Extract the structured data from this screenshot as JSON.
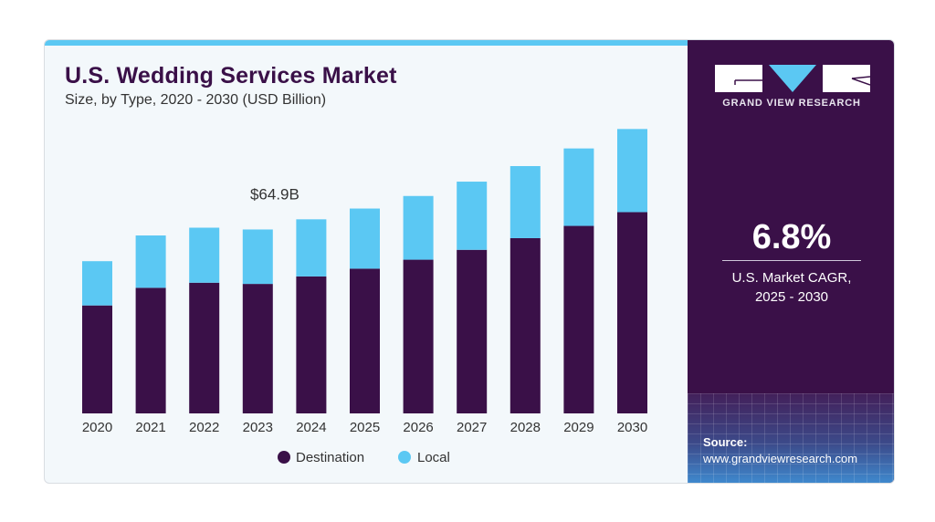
{
  "header": {
    "title": "U.S. Wedding Services Market",
    "subtitle": "Size, by Type, 2020 - 2030 (USD Billion)"
  },
  "brand": {
    "name": "GRAND VIEW RESEARCH",
    "logo_letters": "GVR"
  },
  "stat": {
    "value": "6.8%",
    "label_line1": "U.S. Market CAGR,",
    "label_line2": "2025 - 2030"
  },
  "source": {
    "label": "Source:",
    "url": "www.grandviewresearch.com"
  },
  "colors": {
    "destination": "#3a1048",
    "local": "#5bc8f3",
    "accent": "#5bc8f3",
    "panel": "#3a1048"
  },
  "chart_data": {
    "type": "bar",
    "stacked": true,
    "title": "U.S. Wedding Services Market",
    "subtitle": "Size, by Type, 2020 - 2030 (USD Billion)",
    "categories": [
      "2020",
      "2021",
      "2022",
      "2023",
      "2024",
      "2025",
      "2026",
      "2027",
      "2028",
      "2029",
      "2030"
    ],
    "series": [
      {
        "name": "Destination",
        "color": "#3a1048",
        "values": [
          36.1,
          42.0,
          43.7,
          43.3,
          45.8,
          48.4,
          51.4,
          54.7,
          58.6,
          62.7,
          67.3
        ]
      },
      {
        "name": "Local",
        "color": "#5bc8f3",
        "values": [
          14.8,
          17.5,
          18.4,
          18.2,
          19.1,
          20.1,
          21.3,
          22.8,
          24.1,
          25.9,
          27.8
        ]
      }
    ],
    "annotations": [
      {
        "category": "2024",
        "text": "$64.9B"
      }
    ],
    "ylim": [
      0,
      100
    ],
    "grid": false,
    "legend": "bottom",
    "xlabel": "",
    "ylabel": ""
  }
}
